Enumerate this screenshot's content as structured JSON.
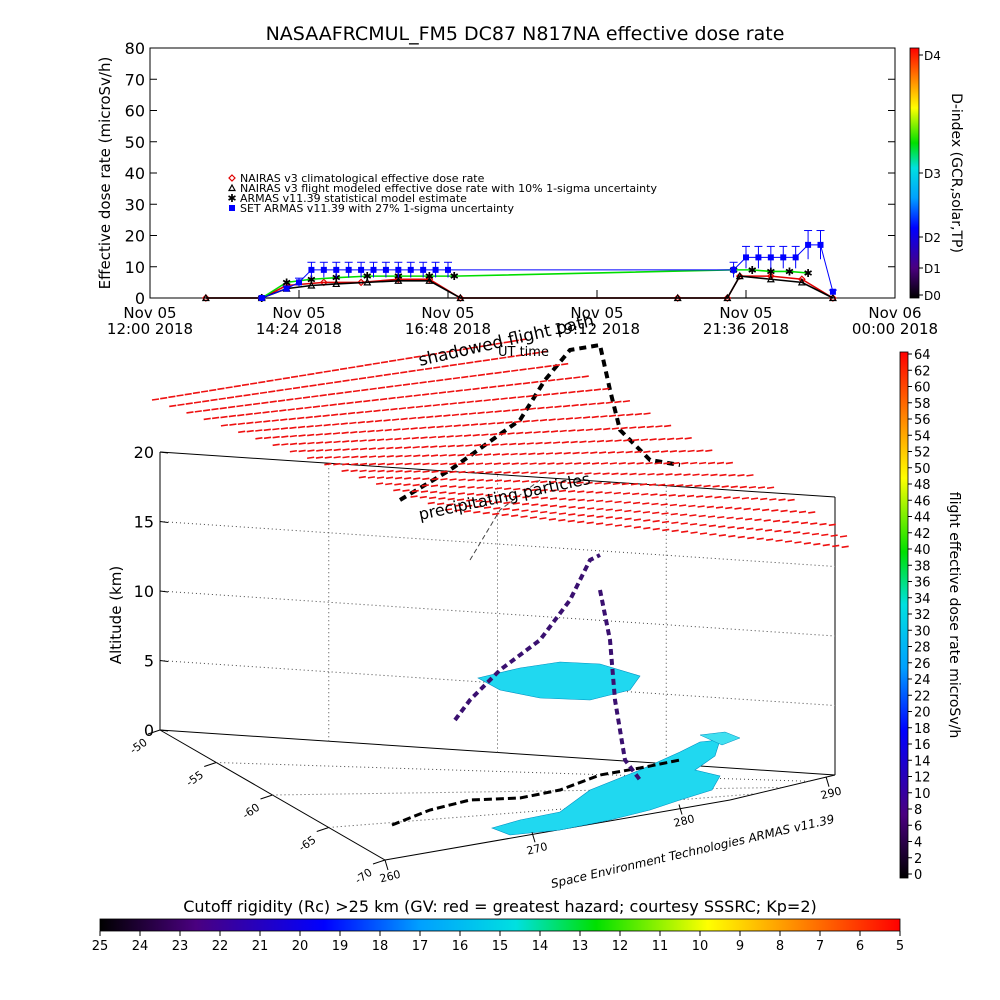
{
  "title": "NASAAFRCMUL_FM5 DC87 N817NA effective dose rate",
  "top_chart": {
    "ylabel": "Effective dose rate (microSv/h)",
    "yticks": [
      "0",
      "10",
      "20",
      "30",
      "40",
      "50",
      "60",
      "70",
      "80"
    ],
    "xticks": [
      {
        "l1": "Nov 05",
        "l2": "12:00 2018"
      },
      {
        "l1": "Nov 05",
        "l2": "14:24 2018"
      },
      {
        "l1": "Nov 05",
        "l2": "16:48 2018"
      },
      {
        "l1": "Nov 05",
        "l2": "19:12 2018"
      },
      {
        "l1": "Nov 05",
        "l2": "21:36 2018"
      },
      {
        "l1": "Nov 06",
        "l2": "00:00 2018"
      }
    ],
    "xlabel": "UT time",
    "legend": [
      {
        "text": "NAIRAS v3 climatological effective dose rate",
        "color": "#e00000",
        "marker": "diamond"
      },
      {
        "text": "NAIRAS v3 flight modeled effective dose rate with 10% 1-sigma uncertainty",
        "color": "#000000",
        "marker": "triangle"
      },
      {
        "text": "ARMAS v11.39 statistical model estimate",
        "color": "#00dd00",
        "marker": "star"
      },
      {
        "text": "SET ARMAS v11.39 with 27% 1-sigma uncertainty",
        "color": "#0000ff",
        "marker": "square"
      }
    ],
    "dindex": {
      "label": "D-index (GCR,solar,TP)",
      "ticks": [
        "D0",
        "D1",
        "D2",
        "D3",
        "D4"
      ]
    }
  },
  "chart_data": [
    {
      "type": "scatter",
      "title": "NASAAFRCMUL_FM5 DC87 N817NA effective dose rate",
      "xlabel": "UT time",
      "ylabel": "Effective dose rate (microSv/h)",
      "x_units": "hours since Nov 05 12:00 UT",
      "ylim": [
        0,
        80
      ],
      "xlim": [
        0,
        12
      ],
      "series": [
        {
          "name": "NAIRAS v3 climatological effective dose rate",
          "x": [
            0.9,
            1.8,
            2.2,
            2.8,
            3.4,
            4.0,
            4.5,
            5.0,
            8.5,
            9.3,
            9.5,
            10.0,
            10.5,
            11.0
          ],
          "y": [
            0,
            0,
            4,
            5,
            5,
            6,
            6,
            0,
            0,
            0,
            7,
            7,
            6,
            0
          ]
        },
        {
          "name": "NAIRAS v3 flight modeled effective dose rate with 10% 1-sigma uncertainty",
          "x": [
            0.9,
            1.8,
            2.2,
            2.6,
            3.0,
            3.5,
            4.0,
            4.5,
            5.0,
            8.5,
            9.3,
            9.5,
            10.0,
            10.5,
            11.0
          ],
          "y": [
            0,
            0,
            3,
            4,
            4.5,
            5,
            5.5,
            5.5,
            0,
            0,
            0,
            7,
            6,
            5,
            0
          ]
        },
        {
          "name": "ARMAS v11.39 statistical model estimate",
          "x": [
            1.8,
            2.2,
            2.6,
            3.0,
            3.5,
            4.0,
            4.5,
            4.9,
            9.4,
            9.7,
            10.0,
            10.3,
            10.6
          ],
          "y": [
            0,
            5,
            6,
            6.5,
            7,
            7,
            7,
            7,
            9,
            9,
            8.5,
            8.5,
            8
          ]
        },
        {
          "name": "SET ARMAS v11.39 with 27% 1-sigma uncertainty",
          "x": [
            1.8,
            2.2,
            2.4,
            2.6,
            2.8,
            3.0,
            3.2,
            3.4,
            3.6,
            3.8,
            4.0,
            4.2,
            4.4,
            4.6,
            4.8,
            9.4,
            9.6,
            9.8,
            10.0,
            10.2,
            10.4,
            10.6,
            10.8,
            11.0
          ],
          "y": [
            0,
            3,
            5,
            9,
            9,
            9,
            9,
            9,
            9,
            9,
            9,
            9,
            9,
            9,
            9,
            9,
            13,
            13,
            13,
            13,
            13,
            17,
            17,
            2
          ]
        }
      ]
    },
    {
      "type": "heatmap",
      "title": "flight effective dose rate microSv/h",
      "zlabel": "Altitude (km)",
      "zticks": [
        "0",
        "5",
        "10",
        "15",
        "20"
      ],
      "lat_ticks": [
        "-50",
        "-55",
        "-60",
        "-65",
        "-70"
      ],
      "lon_ticks": [
        "260",
        "270",
        "280",
        "290"
      ],
      "colorbar_ticks": [
        "0",
        "2",
        "4",
        "6",
        "8",
        "10",
        "12",
        "14",
        "16",
        "18",
        "20",
        "22",
        "24",
        "26",
        "28",
        "30",
        "32",
        "34",
        "36",
        "38",
        "40",
        "42",
        "44",
        "46",
        "48",
        "50",
        "52",
        "54",
        "56",
        "58",
        "60",
        "62",
        "64"
      ]
    }
  ],
  "scene3d": {
    "zlabel": "Altitude (km)",
    "zticks": [
      "0",
      "5",
      "10",
      "15",
      "20"
    ],
    "lat_ticks": [
      "-50",
      "-55",
      "-60",
      "-65",
      "-70"
    ],
    "lon_ticks": [
      "260",
      "270",
      "280",
      "290"
    ],
    "shadow_label": "shadowed flight path",
    "precip_label": "precipitating particles",
    "credit": "Space Environment Technologies ARMAS v11.39"
  },
  "right_colorbar": {
    "label": "flight effective dose rate microSv/h",
    "ticks": [
      "0",
      "2",
      "4",
      "6",
      "8",
      "10",
      "12",
      "14",
      "16",
      "18",
      "20",
      "22",
      "24",
      "26",
      "28",
      "30",
      "32",
      "34",
      "36",
      "38",
      "40",
      "42",
      "44",
      "46",
      "48",
      "50",
      "52",
      "54",
      "56",
      "58",
      "60",
      "62",
      "64"
    ]
  },
  "bottom_colorbar": {
    "label": "Cutoff rigidity (Rc) >25 km (GV: red = greatest hazard; courtesy SSSRC; Kp=2)",
    "ticks": [
      "25",
      "24",
      "23",
      "22",
      "21",
      "20",
      "19",
      "18",
      "17",
      "16",
      "15",
      "14",
      "13",
      "12",
      "11",
      "10",
      "9",
      "8",
      "7",
      "6",
      "5"
    ]
  }
}
